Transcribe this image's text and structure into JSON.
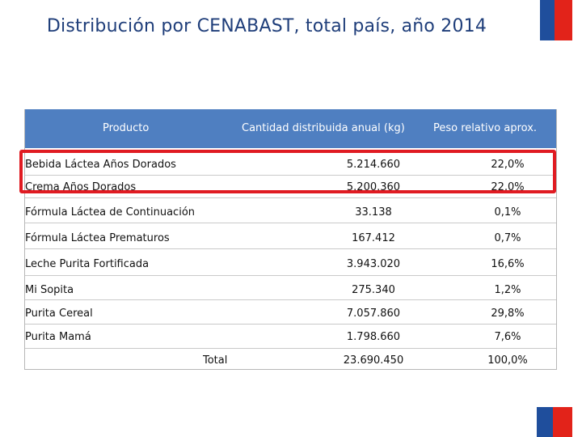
{
  "title": "Distribución por CENABAST, total país, año 2014",
  "table": {
    "headers": {
      "product": "Producto",
      "quantity": "Cantidad distribuida anual (kg)",
      "weight": "Peso relativo aprox."
    },
    "rows": [
      {
        "product": "Bebida Láctea Años Dorados",
        "quantity": "5.214.660",
        "weight": "22,0%"
      },
      {
        "product": "Crema Años Dorados",
        "quantity": "5.200.360",
        "weight": "22,0%"
      },
      {
        "product": "Fórmula Láctea de Continuación",
        "quantity": "33.138",
        "weight": "0,1%"
      },
      {
        "product": "Fórmula Láctea Prematuros",
        "quantity": "167.412",
        "weight": "0,7%"
      },
      {
        "product": "Leche Purita Fortificada",
        "quantity": "3.943.020",
        "weight": "16,6%"
      },
      {
        "product": "Mi Sopita",
        "quantity": "275.340",
        "weight": "1,2%"
      },
      {
        "product": "Purita Cereal",
        "quantity": "7.057.860",
        "weight": "29,8%"
      },
      {
        "product": "Purita Mamá",
        "quantity": "1.798.660",
        "weight": "7,6%"
      }
    ],
    "total": {
      "label": "Total",
      "quantity": "23.690.450",
      "weight": "100,0%"
    }
  },
  "colors": {
    "header_bg": "#4f7fc1",
    "title": "#1f3e7a",
    "highlight": "#e01b22",
    "flag_blue": "#1f4e9c",
    "flag_red": "#e2231a"
  }
}
